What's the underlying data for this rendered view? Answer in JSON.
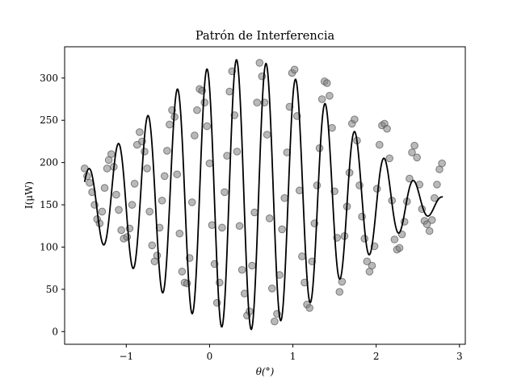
{
  "chart_data": {
    "type": "scatter",
    "title": "Patrón de Interferencia",
    "xlabel": "θ(°)",
    "ylabel": "I(μW)",
    "xlim": [
      -1.74,
      3.07
    ],
    "ylim": [
      -15,
      337
    ],
    "xticks": [
      -1,
      0,
      1,
      2,
      3
    ],
    "xtick_labels": [
      "−1",
      "0",
      "1",
      "2",
      "3"
    ],
    "yticks": [
      0,
      50,
      100,
      150,
      200,
      250,
      300
    ],
    "ytick_labels": [
      "0",
      "50",
      "100",
      "150",
      "200",
      "250",
      "300"
    ],
    "grid": false,
    "legend": "none",
    "colors": {
      "points": "#808080",
      "points_edge": "#555555",
      "curve": "#000000"
    },
    "series": [
      {
        "kind": "points",
        "points": [
          [
            -1.5,
            193
          ],
          [
            -1.47,
            184
          ],
          [
            -1.44,
            176
          ],
          [
            -1.41,
            165
          ],
          [
            -1.38,
            150
          ],
          [
            -1.35,
            133
          ],
          [
            -1.32,
            128
          ],
          [
            -1.29,
            142
          ],
          [
            -1.26,
            170
          ],
          [
            -1.23,
            193
          ],
          [
            -1.21,
            203
          ],
          [
            -1.18,
            210
          ],
          [
            -1.15,
            195
          ],
          [
            -1.12,
            162
          ],
          [
            -1.09,
            144
          ],
          [
            -1.06,
            120
          ],
          [
            -1.03,
            110
          ],
          [
            -0.99,
            112
          ],
          [
            -0.96,
            122
          ],
          [
            -0.93,
            150
          ],
          [
            -0.9,
            175
          ],
          [
            -0.87,
            221
          ],
          [
            -0.84,
            236
          ],
          [
            -0.81,
            225
          ],
          [
            -0.78,
            213
          ],
          [
            -0.75,
            193
          ],
          [
            -0.72,
            142
          ],
          [
            -0.69,
            102
          ],
          [
            -0.66,
            83
          ],
          [
            -0.63,
            90
          ],
          [
            -0.6,
            123
          ],
          [
            -0.57,
            155
          ],
          [
            -0.54,
            184
          ],
          [
            -0.51,
            214
          ],
          [
            -0.48,
            245
          ],
          [
            -0.45,
            262
          ],
          [
            -0.42,
            254
          ],
          [
            -0.39,
            186
          ],
          [
            -0.36,
            116
          ],
          [
            -0.33,
            71
          ],
          [
            -0.3,
            58
          ],
          [
            -0.27,
            57
          ],
          [
            -0.24,
            87
          ],
          [
            -0.21,
            153
          ],
          [
            -0.18,
            232
          ],
          [
            -0.15,
            262
          ],
          [
            -0.12,
            287
          ],
          [
            -0.09,
            285
          ],
          [
            -0.06,
            271
          ],
          [
            -0.03,
            243
          ],
          [
            0.0,
            199
          ],
          [
            0.03,
            126
          ],
          [
            0.06,
            80
          ],
          [
            0.09,
            34
          ],
          [
            0.12,
            58
          ],
          [
            0.15,
            123
          ],
          [
            0.18,
            165
          ],
          [
            0.21,
            208
          ],
          [
            0.24,
            284
          ],
          [
            0.27,
            308
          ],
          [
            0.3,
            256
          ],
          [
            0.33,
            213
          ],
          [
            0.36,
            125
          ],
          [
            0.39,
            73
          ],
          [
            0.42,
            45
          ],
          [
            0.45,
            19
          ],
          [
            0.48,
            24
          ],
          [
            0.51,
            78
          ],
          [
            0.54,
            141
          ],
          [
            0.57,
            271
          ],
          [
            0.6,
            318
          ],
          [
            0.63,
            302
          ],
          [
            0.66,
            271
          ],
          [
            0.69,
            233
          ],
          [
            0.72,
            134
          ],
          [
            0.75,
            51
          ],
          [
            0.78,
            12
          ],
          [
            0.81,
            21
          ],
          [
            0.84,
            67
          ],
          [
            0.87,
            121
          ],
          [
            0.9,
            158
          ],
          [
            0.93,
            212
          ],
          [
            0.96,
            266
          ],
          [
            0.99,
            306
          ],
          [
            1.02,
            310
          ],
          [
            1.05,
            255
          ],
          [
            1.08,
            167
          ],
          [
            1.11,
            89
          ],
          [
            1.14,
            58
          ],
          [
            1.17,
            32
          ],
          [
            1.2,
            28
          ],
          [
            1.23,
            83
          ],
          [
            1.26,
            128
          ],
          [
            1.29,
            173
          ],
          [
            1.32,
            217
          ],
          [
            1.35,
            275
          ],
          [
            1.38,
            296
          ],
          [
            1.41,
            294
          ],
          [
            1.44,
            279
          ],
          [
            1.47,
            241
          ],
          [
            1.5,
            166
          ],
          [
            1.53,
            111
          ],
          [
            1.56,
            47
          ],
          [
            1.59,
            59
          ],
          [
            1.62,
            113
          ],
          [
            1.65,
            148
          ],
          [
            1.68,
            188
          ],
          [
            1.71,
            246
          ],
          [
            1.74,
            251
          ],
          [
            1.77,
            226
          ],
          [
            1.8,
            173
          ],
          [
            1.83,
            136
          ],
          [
            1.86,
            110
          ],
          [
            1.89,
            83
          ],
          [
            1.92,
            71
          ],
          [
            1.95,
            78
          ],
          [
            1.98,
            101
          ],
          [
            2.01,
            169
          ],
          [
            2.04,
            221
          ],
          [
            2.07,
            244
          ],
          [
            2.1,
            246
          ],
          [
            2.13,
            240
          ],
          [
            2.16,
            205
          ],
          [
            2.19,
            155
          ],
          [
            2.22,
            109
          ],
          [
            2.25,
            97
          ],
          [
            2.28,
            99
          ],
          [
            2.31,
            115
          ],
          [
            2.34,
            130
          ],
          [
            2.37,
            154
          ],
          [
            2.4,
            181
          ],
          [
            2.43,
            212
          ],
          [
            2.46,
            220
          ],
          [
            2.49,
            206
          ],
          [
            2.52,
            174
          ],
          [
            2.55,
            145
          ],
          [
            2.58,
            131
          ],
          [
            2.61,
            127
          ],
          [
            2.64,
            119
          ],
          [
            2.67,
            132
          ],
          [
            2.7,
            158
          ],
          [
            2.73,
            174
          ],
          [
            2.76,
            192
          ],
          [
            2.79,
            199
          ]
        ]
      },
      {
        "kind": "line",
        "envelope_curve": "I(θ) = A(θ)·cos²(kθ + φ) + B(θ)",
        "x_range": [
          -1.5,
          2.8
        ]
      }
    ]
  }
}
